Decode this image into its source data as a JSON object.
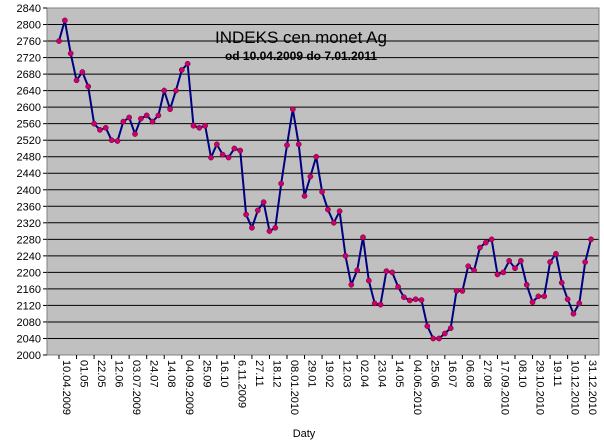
{
  "chart_data": {
    "type": "line",
    "title": "INDEKS cen monet Ag",
    "subtitle": "od 10.04.2009 do 7.01.2011",
    "xlabel": "Daty",
    "ylabel": "",
    "ylim": [
      2000,
      2840
    ],
    "ytick_step": 40,
    "grid": "horizontal",
    "legend": "none",
    "colors": {
      "plot_background": "#c0c0c0",
      "gridline": "#000000",
      "line": "#000080",
      "marker": "#cc0066"
    },
    "x_tick_labels": [
      "10.04.2009",
      "01.05",
      "22.05",
      "12.06",
      "03.07.2009",
      "24.07",
      "14.08",
      "04.09.2009",
      "25.09",
      "16.10",
      "6.11.2009",
      "27.11",
      "18.12",
      "08.01.2010",
      "29.01",
      "19.02",
      "12.03",
      "02.04",
      "23.04",
      "14.05",
      "04.06.2010",
      "25.06",
      "16.07",
      "06.08",
      "27.08",
      "17.09.2010",
      "08.10",
      "29.10.2010",
      "19.11",
      "10.12.2010",
      "31.12.2010"
    ],
    "x_tick_index": [
      0,
      3,
      6,
      9,
      12,
      15,
      18,
      21,
      24,
      27,
      30,
      33,
      36,
      39,
      42,
      45,
      48,
      51,
      54,
      57,
      60,
      63,
      66,
      69,
      72,
      75,
      78,
      81,
      84,
      87,
      90
    ],
    "values": [
      2760,
      2810,
      2730,
      2665,
      2685,
      2650,
      2560,
      2545,
      2550,
      2520,
      2518,
      2565,
      2575,
      2535,
      2572,
      2580,
      2565,
      2580,
      2640,
      2595,
      2640,
      2690,
      2705,
      2555,
      2550,
      2555,
      2478,
      2510,
      2485,
      2478,
      2500,
      2495,
      2340,
      2308,
      2350,
      2370,
      2300,
      2308,
      2415,
      2508,
      2595,
      2510,
      2385,
      2432,
      2480,
      2395,
      2352,
      2320,
      2348,
      2240,
      2170,
      2205,
      2285,
      2180,
      2125,
      2122,
      2203,
      2200,
      2165,
      2140,
      2132,
      2135,
      2133,
      2070,
      2040,
      2040,
      2052,
      2065,
      2155,
      2155,
      2215,
      2205,
      2260,
      2272,
      2280,
      2195,
      2200,
      2228,
      2210,
      2228,
      2170,
      2128,
      2142,
      2142,
      2225,
      2245,
      2175,
      2135,
      2100,
      2125,
      2225,
      2280
    ]
  }
}
